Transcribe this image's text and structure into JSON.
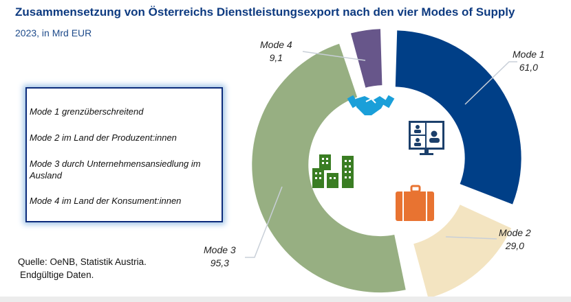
{
  "chart_data": {
    "type": "pie",
    "title": "Zusammensetzung von Österreichs Dienstleistungsexport nach den vier Modes of Supply",
    "subtitle": "2023, in Mrd EUR",
    "categories": [
      "Mode 1",
      "Mode 2",
      "Mode 3",
      "Mode 4"
    ],
    "values": [
      61.0,
      29.0,
      95.3,
      9.1
    ],
    "value_labels": [
      "61,0",
      "29,0",
      "95,3",
      "9,1"
    ],
    "colors": [
      "#003f87",
      "#f3e4c1",
      "#97af82",
      "#67568a"
    ],
    "icons": [
      "video-conference-icon",
      "briefcase-icon",
      "buildings-icon",
      "handshake-icon"
    ],
    "icon_colors": [
      "#1b3f6b",
      "#e87331",
      "#3a7d23",
      "#1a9fd9"
    ],
    "legend": [
      "Mode 1 grenzüberschreitend",
      "Mode 2 im Land der Produzent:innen",
      "Mode 3 durch Unternehmensansiedlung im Ausland",
      "Mode 4 im Land der Konsument:innen"
    ],
    "source": [
      "Quelle: OeNB, Statistik Austria.",
      "Endgültige Daten."
    ]
  }
}
